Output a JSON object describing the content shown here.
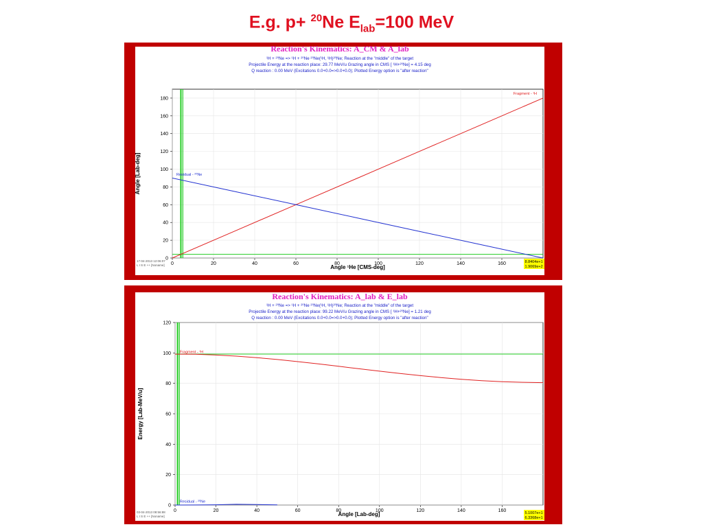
{
  "slide": {
    "title_prefix": "E.g. p+ ",
    "title_sup": "20",
    "title_ne": "Ne E",
    "title_sub": "lab",
    "title_suffix": "=100 MeV"
  },
  "colors": {
    "frame": "#c00000",
    "fragment": "#e02020",
    "residual": "#2030d0",
    "grazing": "#22cc22",
    "title": "#e01020",
    "header_title": "#e020c0",
    "header_text": "#1a20c8",
    "corner_box": "#ffff00"
  },
  "chart_data": [
    {
      "type": "line",
      "title": "Reaction's Kinematics:  A_CM  &  A_lab",
      "header_lines": [
        "¹H + ²⁰Ne => ¹H + ²⁰Ne      ²⁰Ne(¹H, ¹H)²⁰Ne;   Reaction at the \"middle\" of the target",
        "Projectile Energy at the reaction place:  29.77 MeV/u          Grazing angle in CMS [ ¹H+²⁰Ne] = 4.15 deg",
        "Q reaction : 0.00 MeV  (Excitations 0.0+0.0=>0.0+0.0);   Plotted Energy option is \"after reaction\""
      ],
      "xlabel": "Angle  ¹He [CMS-deg]",
      "ylabel": "Angle [Lab-deg]",
      "xlim": [
        0,
        180
      ],
      "ylim": [
        0,
        190
      ],
      "xticks": [
        0,
        20,
        40,
        60,
        80,
        100,
        120,
        140,
        160
      ],
      "yticks": [
        0,
        20,
        40,
        60,
        80,
        100,
        120,
        140,
        160,
        180
      ],
      "grid": true,
      "series": [
        {
          "name": "Fragment - ¹H",
          "color": "#e02020",
          "x": [
            0,
            30,
            60,
            90,
            120,
            150,
            180
          ],
          "y": [
            0,
            30,
            60,
            90,
            120,
            150,
            180
          ]
        },
        {
          "name": "Residual - ²⁰Ne",
          "color": "#2030d0",
          "x": [
            0,
            30,
            60,
            90,
            120,
            150,
            180
          ],
          "y": [
            90,
            75,
            60,
            45,
            30,
            15,
            0
          ]
        }
      ],
      "vlines": [
        {
          "x": 4.15,
          "color": "#22cc22"
        },
        {
          "x": 5.1,
          "color": "#22cc22"
        }
      ],
      "hlines": [
        {
          "y": 4.15,
          "color": "#22cc22"
        }
      ],
      "stamp_lines": [
        "17-04-2013  12:06:07",
        "L I S E ++  [Noname]"
      ],
      "corner_values": [
        "8.8404e+1",
        "1.9069e+2"
      ]
    },
    {
      "type": "line",
      "title": "Reaction's Kinematics:  A_lab  &  E_lab",
      "header_lines": [
        "¹H + ²⁰Ne => ¹H + ²⁰Ne      ²⁰Ne(¹H, ¹H)²⁰Ne;   Reaction at the \"middle\" of the target",
        "Projectile Energy at the reaction place:  99.22 MeV/u          Grazing angle in CMS [ ¹H+²⁰Ne] = 1.21 deg",
        "Q reaction : 0.00 MeV  (Excitations 0.0+0.0=>0.0+0.0);   Plotted Energy option is \"after reaction\""
      ],
      "xlabel": "Angle [Lab-deg]",
      "ylabel": "Energy [Lab-MeV/u]",
      "xlim": [
        0,
        180
      ],
      "ylim": [
        0,
        120
      ],
      "xticks": [
        0,
        20,
        40,
        60,
        80,
        100,
        120,
        140,
        160
      ],
      "yticks": [
        0,
        20,
        40,
        60,
        80,
        100,
        120
      ],
      "grid": true,
      "series": [
        {
          "name": "Fragment - ¹H",
          "color": "#e02020",
          "x": [
            0,
            10,
            20,
            30,
            40,
            50,
            60,
            70,
            80,
            90,
            100,
            110,
            120,
            130,
            140,
            150,
            160,
            170,
            180
          ],
          "y": [
            99.2,
            99.1,
            98.6,
            97.9,
            96.9,
            95.7,
            94.3,
            92.8,
            91.2,
            89.6,
            88.0,
            86.5,
            85.1,
            83.8,
            82.7,
            81.8,
            81.1,
            80.7,
            80.5
          ]
        },
        {
          "name": "Residual - ²⁰Ne",
          "color": "#2030d0",
          "x": [
            0,
            10,
            20,
            30,
            40,
            50
          ],
          "y": [
            0.0,
            0.05,
            0.2,
            0.5,
            0.3,
            0.1
          ]
        }
      ],
      "vlines": [
        {
          "x": 1.21,
          "color": "#22cc22"
        },
        {
          "x": 2.1,
          "color": "#22cc22"
        }
      ],
      "hlines": [
        {
          "y": 99.22,
          "color": "#22cc22"
        }
      ],
      "stamp_lines": [
        "03-04-2013  08:56:88",
        "L I S E ++  [Noname]"
      ],
      "corner_values": [
        "5.1007e+1",
        "6.3368e+1"
      ]
    }
  ]
}
